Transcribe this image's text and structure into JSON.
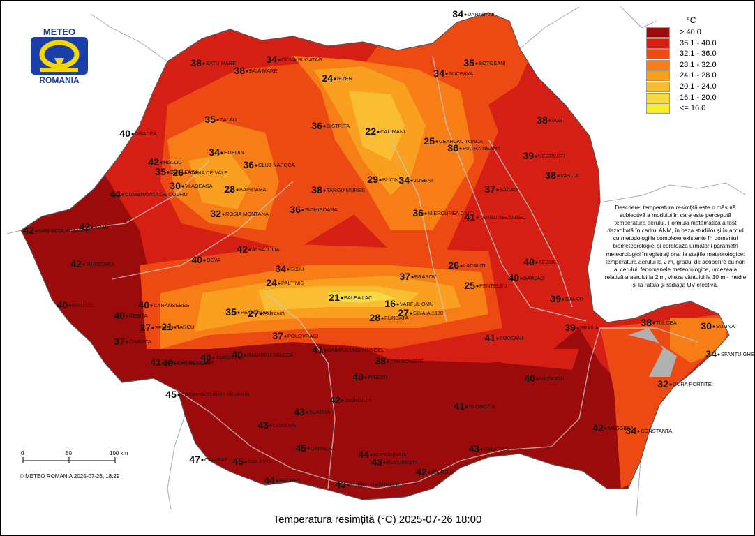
{
  "logo": {
    "top": "METEO",
    "bottom": "ROMANIA"
  },
  "legend": {
    "unit": "°C",
    "items": [
      {
        "label": "> 40.0",
        "color": "#9c0b0b"
      },
      {
        "label": "36.1 - 40.0",
        "color": "#d51f14"
      },
      {
        "label": "32.1 - 36.0",
        "color": "#ec4a12"
      },
      {
        "label": "28.1 - 32.0",
        "color": "#f77d17"
      },
      {
        "label": "24.1 - 28.0",
        "color": "#f9a021"
      },
      {
        "label": "20.1 - 24.0",
        "color": "#f9bd33"
      },
      {
        "label": "16.1 - 20.0",
        "color": "#f8d844"
      },
      {
        "label": "<= 16.0",
        "color": "#f9ef27"
      }
    ]
  },
  "description": "Descriere: temperatura resimțită este o măsură subiectivă a modului în care este percepută temperatura aerului. Formula matematică a fost dezvoltată în cadrul ANM, în baza studiilor și în acord cu metodologiile complexe existente în domeniul biometeorologiei și corelează următorii parametri meteorologici înregistrați orar la stațiile meteorologice: temperatura aerului la 2 m, gradul de acoperire cu nori al cerului, fenomenele meteorologice, umezeala relativă a aerului la 2 m, viteza vântului la 10 m - medie și la rafala și radiația UV efectivă.",
  "title": "Temperatura resimțită (°C) 2025-07-26 18:00",
  "copyright": "© METEO ROMANIA 2025-07-26, 18:29",
  "scale": {
    "ticks": [
      "0",
      "50",
      "100 km"
    ]
  },
  "stations": [
    {
      "name": "DARABANI",
      "value": "34"
    },
    {
      "name": "SATU MARE",
      "value": "38"
    },
    {
      "name": "BAIA MARE",
      "value": "38"
    },
    {
      "name": "OCNA SUGATAG",
      "value": "34"
    },
    {
      "name": "IEZER",
      "value": "24"
    },
    {
      "name": "BOTOSANI",
      "value": "35"
    },
    {
      "name": "SUCEAVA",
      "value": "34"
    },
    {
      "name": "ZALAU",
      "value": "35"
    },
    {
      "name": "BISTRITA",
      "value": "36"
    },
    {
      "name": "CALIMANI",
      "value": "22"
    },
    {
      "name": "ORADEA",
      "value": "40"
    },
    {
      "name": "HUEDIN",
      "value": "34"
    },
    {
      "name": "CLUJ-NAPOCA",
      "value": "36"
    },
    {
      "name": "CEAHLAU TOACA",
      "value": "25"
    },
    {
      "name": "PIATRA NEAMT",
      "value": "36"
    },
    {
      "name": "IASI",
      "value": "38"
    },
    {
      "name": "HOLOD",
      "value": "42"
    },
    {
      "name": "BORLEASA",
      "value": "35"
    },
    {
      "name": "STANA DE VALE",
      "value": "26"
    },
    {
      "name": "VLADEASA",
      "value": "30"
    },
    {
      "name": "NEGRESTI",
      "value": "39"
    },
    {
      "name": "DUMBRAVITA DE CODRU",
      "value": "44"
    },
    {
      "name": "BAISOARA",
      "value": "28"
    },
    {
      "name": "TARGU MURES",
      "value": "38"
    },
    {
      "name": "BUCIN",
      "value": "29"
    },
    {
      "name": "JOSENI",
      "value": "34"
    },
    {
      "name": "BACAU",
      "value": "37"
    },
    {
      "name": "VASLUI",
      "value": "38"
    },
    {
      "name": "ROSIA MONTANA",
      "value": "32"
    },
    {
      "name": "MIERCUREA CIUC",
      "value": "36"
    },
    {
      "name": "TARGU SECUIESC",
      "value": "41"
    },
    {
      "name": "SANNICOLAU MARE",
      "value": "42"
    },
    {
      "name": "ARAD",
      "value": "42"
    },
    {
      "name": "SIGHISOARA",
      "value": "36"
    },
    {
      "name": "ALBA IULIA",
      "value": "42"
    },
    {
      "name": "TIMISOARA",
      "value": "42"
    },
    {
      "name": "DEVA",
      "value": "40"
    },
    {
      "name": "SIBIU",
      "value": "34"
    },
    {
      "name": "LACAUTI",
      "value": "26"
    },
    {
      "name": "TECUCI",
      "value": "40"
    },
    {
      "name": "PALTINIS",
      "value": "24"
    },
    {
      "name": "BALEA LAC",
      "value": "21"
    },
    {
      "name": "BRASOV",
      "value": "37"
    },
    {
      "name": "BARLAD",
      "value": "40"
    },
    {
      "name": "BANLOC",
      "value": "40"
    },
    {
      "name": "CARANSEBES",
      "value": "40"
    },
    {
      "name": "RESITA",
      "value": "40"
    },
    {
      "name": "PETROSANI",
      "value": "35"
    },
    {
      "name": "PARANG",
      "value": "27"
    },
    {
      "name": "VARFUL OMU",
      "value": "16"
    },
    {
      "name": "FUNDATA",
      "value": "28"
    },
    {
      "name": "SINAIA 1500",
      "value": "27"
    },
    {
      "name": "PENTELEU",
      "value": "25"
    },
    {
      "name": "GALATI",
      "value": "39"
    },
    {
      "name": "TULCEA",
      "value": "38"
    },
    {
      "name": "SULINA",
      "value": "30"
    },
    {
      "name": "SEMENIC",
      "value": "27"
    },
    {
      "name": "TARCU",
      "value": "21"
    },
    {
      "name": "ORAVITA",
      "value": "37"
    },
    {
      "name": "POLOVRAGI",
      "value": "37"
    },
    {
      "name": "BRAILA",
      "value": "39"
    },
    {
      "name": "FOCSANI",
      "value": "41"
    },
    {
      "name": "TARGU JIU",
      "value": "40"
    },
    {
      "name": "RAMNICU VALCEA",
      "value": "40"
    },
    {
      "name": "CAMPULUNG MUSCEL",
      "value": "41"
    },
    {
      "name": "TARGOVISTE",
      "value": "38"
    },
    {
      "name": "BAILE HERCULANE",
      "value": "41"
    },
    {
      "name": "APA NEAGRA",
      "value": "40"
    },
    {
      "name": "SFANTU GHEORGHE",
      "value": "34"
    },
    {
      "name": "PITESTI",
      "value": "40"
    },
    {
      "name": "URZICENI",
      "value": "40"
    },
    {
      "name": "GURA PORTITEI",
      "value": "32"
    },
    {
      "name": "DROBETA TURNU SEVERIN",
      "value": "45"
    },
    {
      "name": "SLATINA",
      "value": "43"
    },
    {
      "name": "GIURGIU ?",
      "value": "42"
    },
    {
      "name": "SLOBOZIA",
      "value": "41"
    },
    {
      "name": "CRAIOVA",
      "value": "43"
    },
    {
      "name": "MEDGIDIA",
      "value": "42"
    },
    {
      "name": "CONSTANTA",
      "value": "34"
    },
    {
      "name": "CARACAL",
      "value": "45"
    },
    {
      "name": "CALARASI",
      "value": "43"
    },
    {
      "name": "CALAFAT",
      "value": "47"
    },
    {
      "name": "BAILESTI",
      "value": "45"
    },
    {
      "name": "ALEXANDRIA",
      "value": "44"
    },
    {
      "name": "BUCURESTI",
      "value": "43"
    },
    {
      "name": "BECHET",
      "value": "44"
    },
    {
      "name": "TURNU MAGURELE",
      "value": "43"
    },
    {
      "name": "GIURGIU",
      "value": "42"
    }
  ]
}
